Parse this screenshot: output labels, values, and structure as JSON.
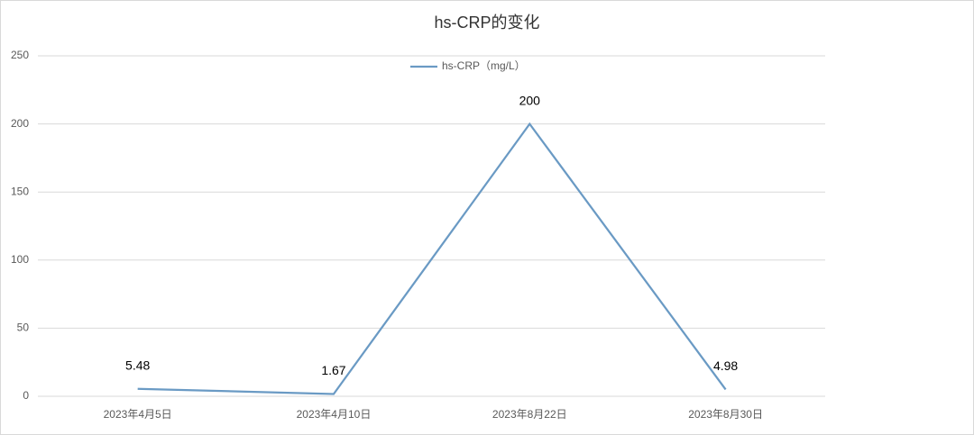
{
  "chart_data": {
    "type": "line",
    "title": "hs-CRP的变化",
    "categories": [
      "2023年4月5日",
      "2023年4月10日",
      "2023年8月22日",
      "2023年8月30日"
    ],
    "series": [
      {
        "name": "hs-CRP（mg/L）",
        "color": "#6a9ac4",
        "values": [
          5.48,
          1.67,
          200,
          4.98
        ]
      }
    ],
    "ylim": [
      0,
      250
    ],
    "yticks": [
      0,
      50,
      100,
      150,
      200,
      250
    ],
    "grid": true,
    "legend": "top"
  }
}
